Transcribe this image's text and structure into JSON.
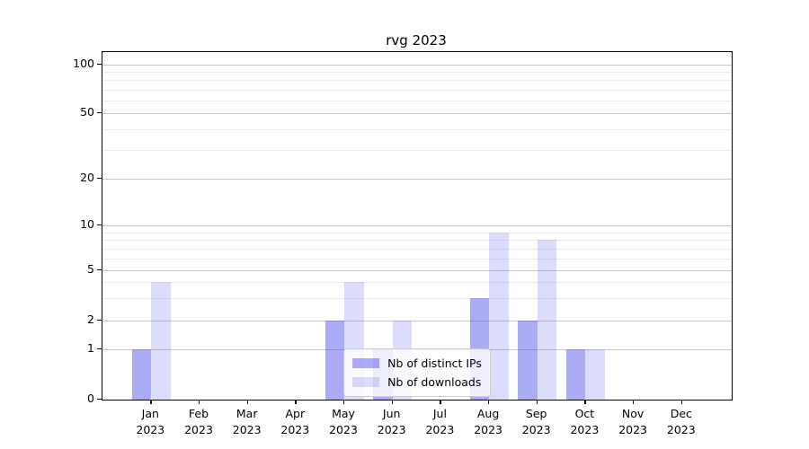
{
  "chart_data": {
    "type": "bar",
    "title": "rvg 2023",
    "categories": [
      "Jan",
      "Feb",
      "Mar",
      "Apr",
      "May",
      "Jun",
      "Jul",
      "Aug",
      "Sep",
      "Oct",
      "Nov",
      "Dec"
    ],
    "year": "2023",
    "series": [
      {
        "name": "Nb of distinct IPs",
        "values": [
          1,
          0,
          0,
          0,
          2,
          1,
          0,
          3,
          2,
          1,
          0,
          0
        ],
        "color": "rgba(48,48,232,0.40)"
      },
      {
        "name": "Nb of downloads",
        "values": [
          4,
          0,
          0,
          0,
          4,
          2,
          0,
          9,
          8,
          1,
          0,
          0
        ],
        "color": "rgba(48,48,232,0.17)"
      }
    ],
    "y_axis": {
      "scale": "log-like",
      "ticks": [
        0,
        1,
        2,
        5,
        10,
        20,
        50,
        100
      ],
      "minor_ticks": [
        3,
        4,
        6,
        7,
        8,
        9,
        30,
        40,
        60,
        70,
        80,
        90
      ],
      "range": [
        0,
        120
      ]
    },
    "x_axis": {
      "tick_label_lines": [
        "month",
        "year"
      ]
    },
    "legend": {
      "position": "lower center",
      "entries": [
        "Nb of distinct IPs",
        "Nb of downloads"
      ]
    },
    "grid": true,
    "colors": {
      "bar_dark_hex": "#a6a6f2",
      "bar_light_hex": "#dcdcf9",
      "grid_major": "#c9c9c9",
      "grid_minor": "#ececec",
      "spine": "#000000",
      "text": "#000000"
    }
  }
}
